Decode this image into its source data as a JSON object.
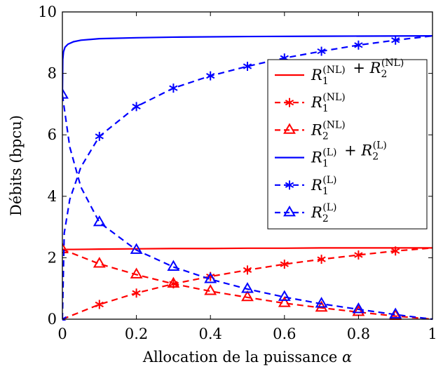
{
  "chart_data": {
    "type": "line",
    "title": "",
    "xlabel": "Allocation de la puissance",
    "xlabel_symbol": "α",
    "ylabel": "Débits (bpcu)",
    "xlim": [
      0,
      1
    ],
    "ylim": [
      0,
      10
    ],
    "xticks": [
      0,
      0.2,
      0.4,
      0.6,
      0.8,
      1
    ],
    "xtick_labels": [
      "0",
      "0.2",
      "0.4",
      "0.6",
      "0.8",
      "1"
    ],
    "yticks": [
      0,
      2,
      4,
      6,
      8,
      10
    ],
    "ytick_labels": [
      "0",
      "2",
      "4",
      "6",
      "8",
      "10"
    ],
    "grid": false,
    "legend_position": "top-right",
    "series": [
      {
        "id": "sum_nl",
        "var": "R",
        "sub": "1",
        "sup": "(NL)",
        "second_sub": "2",
        "second_sup": "(NL)",
        "color": "#ff0000",
        "dash": "solid",
        "marker": "none",
        "x": [
          0,
          0.001,
          0.003,
          0.01,
          0.03,
          0.1,
          0.2,
          0.3,
          0.4,
          0.5,
          0.6,
          0.7,
          0.8,
          0.9,
          1.0
        ],
        "y": [
          2.27,
          2.27,
          2.27,
          2.27,
          2.27,
          2.28,
          2.29,
          2.3,
          2.3,
          2.31,
          2.31,
          2.32,
          2.32,
          2.32,
          2.32
        ]
      },
      {
        "id": "r1_nl",
        "var": "R",
        "sub": "1",
        "sup": "(NL)",
        "color": "#ff0000",
        "dash": "dashed",
        "marker": "asterisk",
        "x": [
          0,
          0.1,
          0.2,
          0.3,
          0.4,
          0.5,
          0.6,
          0.7,
          0.8,
          0.9,
          1.0
        ],
        "y": [
          0,
          0.48,
          0.85,
          1.15,
          1.39,
          1.6,
          1.79,
          1.95,
          2.09,
          2.22,
          2.32
        ]
      },
      {
        "id": "r2_nl",
        "var": "R",
        "sub": "2",
        "sup": "(NL)",
        "color": "#ff0000",
        "dash": "dashed",
        "marker": "triangle",
        "x": [
          0,
          0.1,
          0.2,
          0.3,
          0.4,
          0.5,
          0.6,
          0.7,
          0.8,
          0.9,
          1.0
        ],
        "y": [
          2.27,
          1.8,
          1.45,
          1.15,
          0.91,
          0.71,
          0.52,
          0.37,
          0.23,
          0.1,
          0
        ]
      },
      {
        "id": "sum_l",
        "var": "R",
        "sub": "1",
        "sup": "(L)",
        "second_sub": "2",
        "second_sup": "(L)",
        "color": "#0000ff",
        "dash": "solid",
        "marker": "none",
        "x": [
          0,
          0.001,
          0.003,
          0.007,
          0.015,
          0.03,
          0.05,
          0.1,
          0.2,
          0.3,
          0.5,
          0.7,
          1.0
        ],
        "y": [
          7.3,
          8.45,
          8.7,
          8.85,
          8.95,
          9.03,
          9.08,
          9.13,
          9.16,
          9.18,
          9.2,
          9.21,
          9.22
        ]
      },
      {
        "id": "r1_l",
        "var": "R",
        "sub": "1",
        "sup": "(L)",
        "color": "#0000ff",
        "dash": "dashed",
        "marker": "asterisk",
        "x": [
          0,
          0.005,
          0.02,
          0.05,
          0.1,
          0.2,
          0.3,
          0.4,
          0.5,
          0.6,
          0.7,
          0.8,
          0.9,
          1.0
        ],
        "y": [
          0,
          2.8,
          3.9,
          4.95,
          5.95,
          6.92,
          7.52,
          7.92,
          8.23,
          8.5,
          8.72,
          8.92,
          9.08,
          9.22
        ]
      },
      {
        "id": "r2_l",
        "var": "R",
        "sub": "2",
        "sup": "(L)",
        "color": "#0000ff",
        "dash": "dashed",
        "marker": "triangle",
        "x": [
          0,
          0.02,
          0.05,
          0.1,
          0.2,
          0.3,
          0.4,
          0.5,
          0.6,
          0.7,
          0.8,
          0.9,
          1.0
        ],
        "y": [
          7.3,
          5.6,
          4.3,
          3.15,
          2.25,
          1.7,
          1.3,
          0.98,
          0.72,
          0.5,
          0.32,
          0.15,
          0
        ]
      }
    ],
    "markers_at": [
      0,
      0.1,
      0.2,
      0.3,
      0.4,
      0.5,
      0.6,
      0.7,
      0.8,
      0.9
    ]
  }
}
